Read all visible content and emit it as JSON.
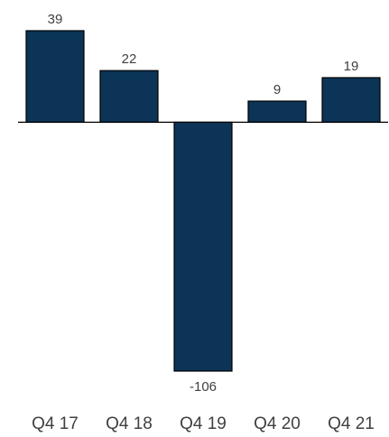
{
  "chart_data": {
    "type": "bar",
    "categories": [
      "Q4 17",
      "Q4 18",
      "Q4 19",
      "Q4 20",
      "Q4 21"
    ],
    "values": [
      39,
      22,
      -106,
      9,
      19
    ],
    "data_labels": [
      "39",
      "22",
      "-106",
      "9",
      "19"
    ],
    "title": "",
    "xlabel": "",
    "ylabel": "",
    "ylim": [
      -106,
      39
    ],
    "grid": false,
    "legend": "none",
    "colors": {
      "bar": "#0c3457",
      "text": "#404040",
      "axis": "#000000"
    }
  }
}
